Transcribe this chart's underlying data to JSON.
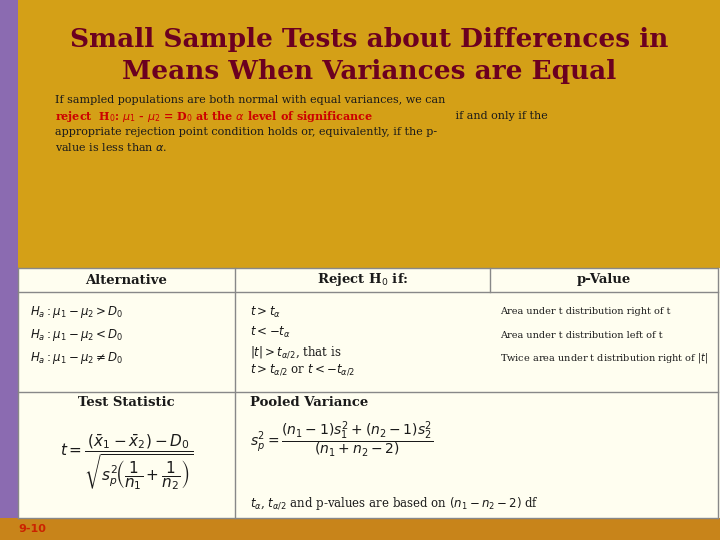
{
  "title_line1": "Small Sample Tests about Differences in",
  "title_line2": "Means When Variances are Equal",
  "title_color": "#6B0020",
  "title_bg_color": "#D4A017",
  "left_strip_color": "#8B6BB1",
  "bottom_bar_color": "#C8841A",
  "slide_bg": "#D4A017",
  "table_bg": "#FFFEF0",
  "slide_number": "9-10",
  "slide_number_color": "#CC2200",
  "table_border": "#888888",
  "text_color": "#1a1a1a",
  "red_bold_color": "#CC0000"
}
